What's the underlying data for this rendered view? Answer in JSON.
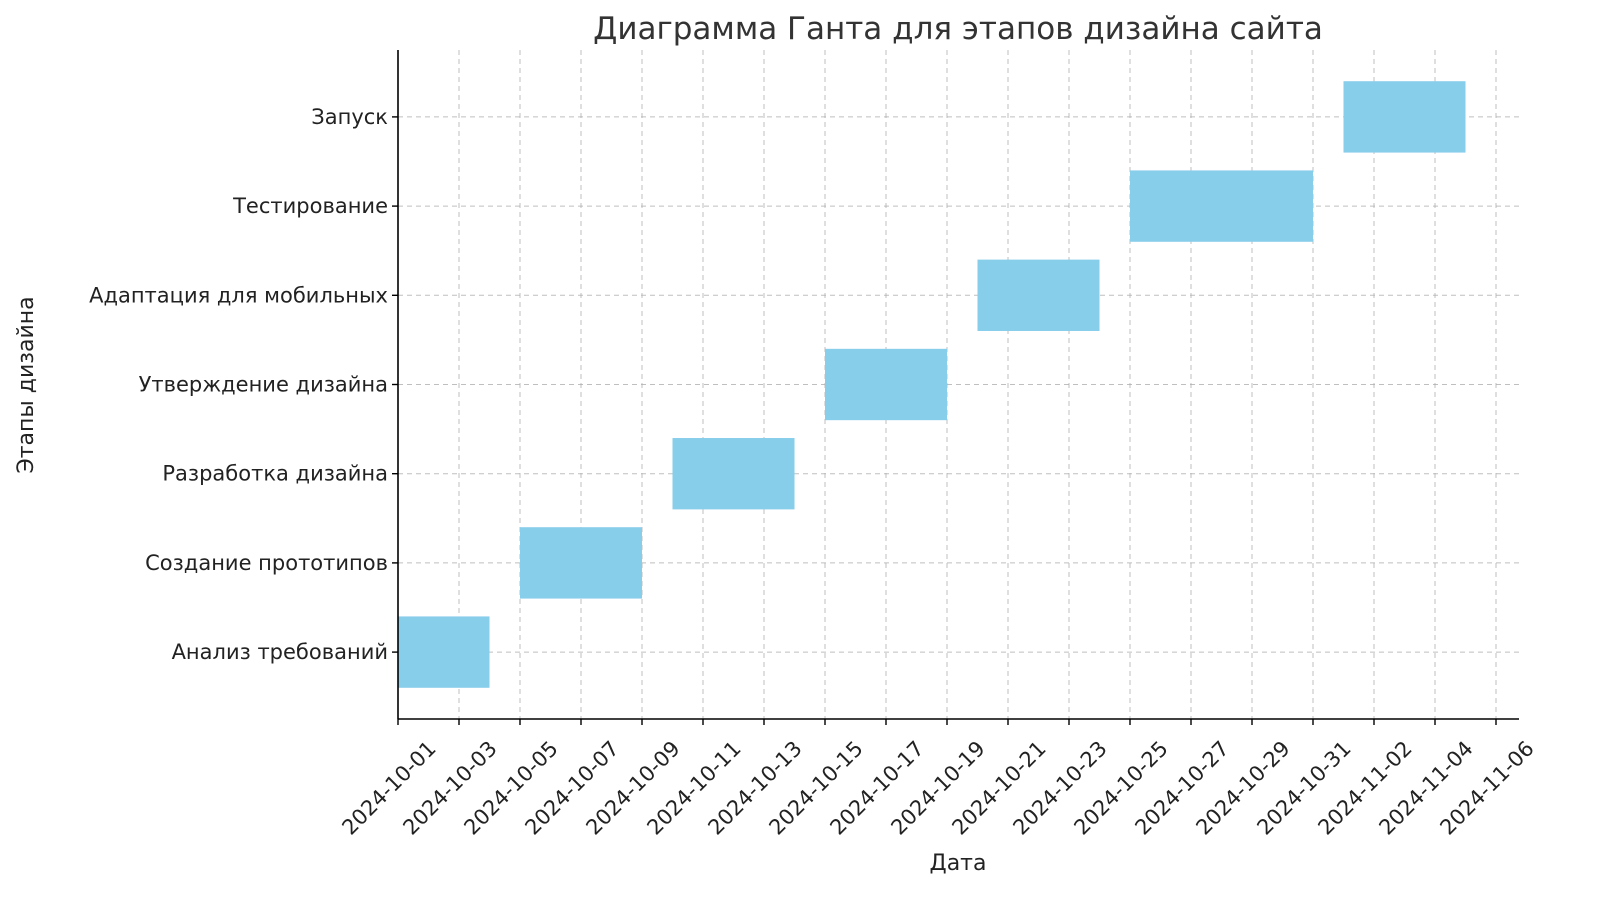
{
  "chart_data": {
    "type": "bar",
    "orientation": "horizontal-gantt",
    "title": "Диаграмма Ганта для этапов дизайна сайта",
    "xlabel": "Дата",
    "ylabel": "Этапы дизайна",
    "categories": [
      "Анализ требований",
      "Создание прототипов",
      "Разработка дизайна",
      "Утверждение дизайна",
      "Адаптация для мобильных",
      "Тестирование",
      "Запуск"
    ],
    "tasks": [
      {
        "name": "Анализ требований",
        "start": "2024-10-01",
        "duration_days": 3
      },
      {
        "name": "Создание прототипов",
        "start": "2024-10-05",
        "duration_days": 4
      },
      {
        "name": "Разработка дизайна",
        "start": "2024-10-10",
        "duration_days": 4
      },
      {
        "name": "Утверждение дизайна",
        "start": "2024-10-15",
        "duration_days": 4
      },
      {
        "name": "Адаптация для мобильных",
        "start": "2024-10-20",
        "duration_days": 4
      },
      {
        "name": "Тестирование",
        "start": "2024-10-25",
        "duration_days": 6
      },
      {
        "name": "Запуск",
        "start": "2024-11-01",
        "duration_days": 4
      }
    ],
    "x_ticks": [
      "2024-10-01",
      "2024-10-03",
      "2024-10-05",
      "2024-10-07",
      "2024-10-09",
      "2024-10-11",
      "2024-10-13",
      "2024-10-15",
      "2024-10-17",
      "2024-10-19",
      "2024-10-21",
      "2024-10-23",
      "2024-10-25",
      "2024-10-27",
      "2024-10-29",
      "2024-10-31",
      "2024-11-02",
      "2024-11-04",
      "2024-11-06"
    ],
    "xlim": [
      "2024-10-01",
      "2024-11-06"
    ],
    "grid": true,
    "bar_color": "#87CEEB"
  }
}
